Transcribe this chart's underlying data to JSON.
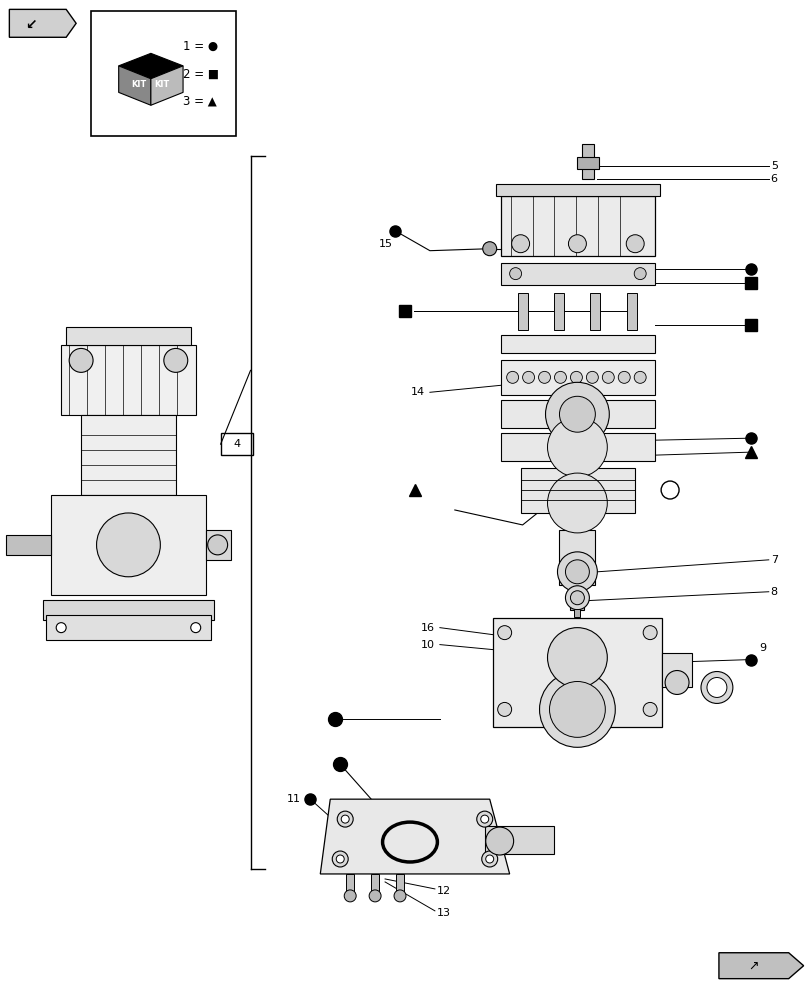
{
  "bg_color": "#ffffff",
  "line_color": "#000000",
  "figsize": [
    8.12,
    10.0
  ],
  "dpi": 100,
  "xlim": [
    0,
    812
  ],
  "ylim": [
    0,
    1000
  ]
}
